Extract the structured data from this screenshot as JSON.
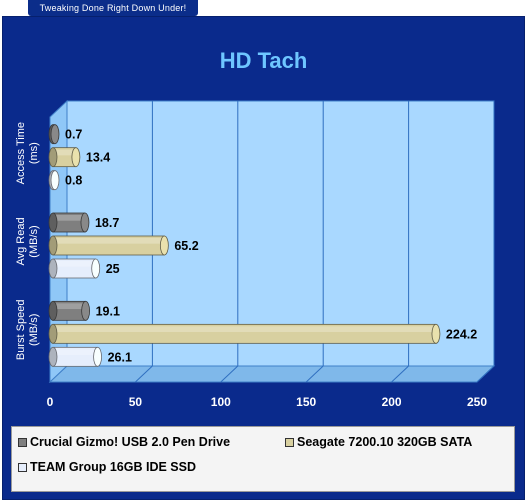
{
  "header": {
    "tab_text": "Tweaking Done Right Down Under!"
  },
  "colors": {
    "panel": "#0a2a8c",
    "plot_area": "#a9d8ff",
    "floor": "#7fb8ea",
    "title": "#6ec6ff",
    "crucial": "#7f7f7f",
    "seagate": "#d8d0a0",
    "team": "#e6eefc"
  },
  "chart_data": {
    "type": "bar",
    "orientation": "horizontal",
    "title": "HD Tach",
    "categories": [
      "Access Time (ms)",
      "Avg Read (MB/s)",
      "Burst Speed (MB/s)"
    ],
    "series": [
      {
        "name": "Crucial Gizmo! USB 2.0 Pen Drive",
        "values": [
          0.7,
          18.7,
          19.1
        ]
      },
      {
        "name": "Seagate 7200.10 320GB SATA",
        "values": [
          13.4,
          65.2,
          224.2
        ]
      },
      {
        "name": "TEAM Group 16GB IDE SSD",
        "values": [
          0.8,
          25,
          26.1
        ]
      }
    ],
    "value_labels": [
      [
        "0.7",
        "18.7",
        "19.1"
      ],
      [
        "13.4",
        "65.2",
        "224.2"
      ],
      [
        "0.8",
        "25",
        "26.1"
      ]
    ],
    "xlim": [
      0,
      250
    ],
    "xticks": [
      "0",
      "50",
      "100",
      "150",
      "200",
      "250"
    ],
    "grid": true,
    "legend_position": "bottom"
  }
}
